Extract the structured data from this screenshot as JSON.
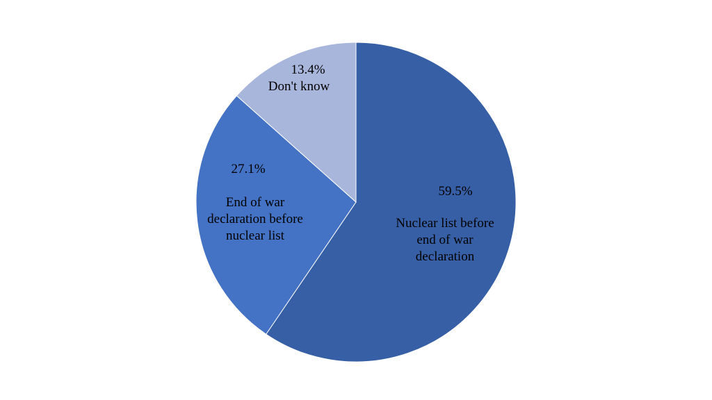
{
  "chart_data": {
    "type": "pie",
    "categories": [
      "Nuclear list before end of war declaration",
      "End of war declaration before nuclear list",
      "Don't know"
    ],
    "values": [
      59.5,
      27.1,
      13.4
    ],
    "value_labels": [
      "59.5%",
      "27.1%",
      "13.4%"
    ],
    "colors": [
      "#365fa5",
      "#4472c4",
      "#a9b6dc"
    ]
  }
}
